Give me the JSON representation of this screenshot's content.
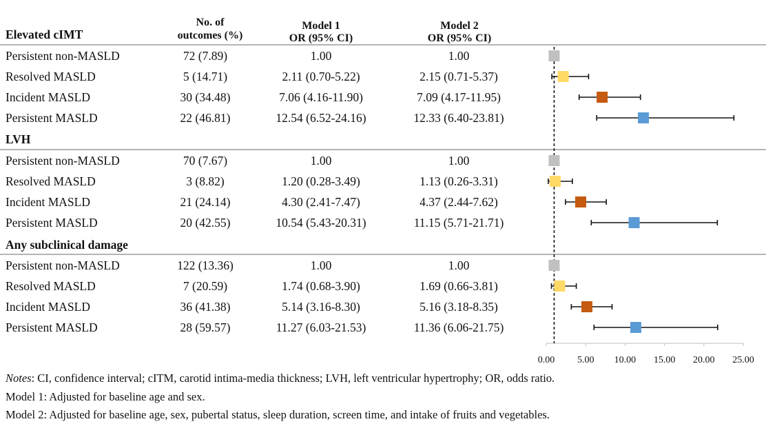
{
  "header": {
    "col_outcomes": [
      "No. of",
      "outcomes (%)"
    ],
    "col_model1": [
      "Model 1",
      "OR (95% CI)"
    ],
    "col_model2": [
      "Model 2",
      "OR (95% CI)"
    ]
  },
  "sections": [
    {
      "title": "Elevated cIMT",
      "rows": [
        {
          "group": "Persistent non-MASLD",
          "outcomes": "72 (7.89)",
          "model1": "1.00",
          "model2": "1.00"
        },
        {
          "group": "Resolved MASLD",
          "outcomes": "5 (14.71)",
          "model1": "2.11 (0.70-5.22)",
          "model2": "2.15 (0.71-5.37)"
        },
        {
          "group": "Incident MASLD",
          "outcomes": "30 (34.48)",
          "model1": "7.06 (4.16-11.90)",
          "model2": "7.09 (4.17-11.95)"
        },
        {
          "group": "Persistent MASLD",
          "outcomes": "22 (46.81)",
          "model1": "12.54 (6.52-24.16)",
          "model2": "12.33 (6.40-23.81)"
        }
      ]
    },
    {
      "title": "LVH",
      "rows": [
        {
          "group": "Persistent non-MASLD",
          "outcomes": "70 (7.67)",
          "model1": "1.00",
          "model2": "1.00"
        },
        {
          "group": "Resolved MASLD",
          "outcomes": "3 (8.82)",
          "model1": "1.20 (0.28-3.49)",
          "model2": "1.13 (0.26-3.31)"
        },
        {
          "group": "Incident MASLD",
          "outcomes": "21 (24.14)",
          "model1": "4.30 (2.41-7.47)",
          "model2": "4.37 (2.44-7.62)"
        },
        {
          "group": "Persistent MASLD",
          "outcomes": "20 (42.55)",
          "model1": "10.54 (5.43-20.31)",
          "model2": "11.15 (5.71-21.71)"
        }
      ]
    },
    {
      "title": "Any subclinical damage",
      "rows": [
        {
          "group": "Persistent non-MASLD",
          "outcomes": "122 (13.36)",
          "model1": "1.00",
          "model2": "1.00"
        },
        {
          "group": "Resolved MASLD",
          "outcomes": "7 (20.59)",
          "model1": "1.74 (0.68-3.90)",
          "model2": "1.69 (0.66-3.81)"
        },
        {
          "group": "Incident MASLD",
          "outcomes": "36 (41.38)",
          "model1": "5.14 (3.16-8.30)",
          "model2": "5.16 (3.18-8.35)"
        },
        {
          "group": "Persistent MASLD",
          "outcomes": "28 (59.57)",
          "model1": "11.27 (6.03-21.53)",
          "model2": "11.36 (6.06-21.75)"
        }
      ]
    }
  ],
  "chart_data": {
    "type": "scatter",
    "subtype": "forest-plot",
    "xlim": [
      0,
      25
    ],
    "x_ticks": [
      "0.00",
      "5.00",
      "10.00",
      "15.00",
      "20.00",
      "25.00"
    ],
    "reference_line": 1,
    "reference_line_style": "dashed",
    "grid": false,
    "group_colors": {
      "Persistent non-MASLD": "#c0c0c0",
      "Resolved MASLD": "#ffd966",
      "Incident MASLD": "#c55a11",
      "Persistent MASLD": "#5b9bd5"
    },
    "estimates_source": "Model 2",
    "points": [
      {
        "section": "Elevated cIMT",
        "group": "Persistent non-MASLD",
        "or": 1.0,
        "lo": null,
        "hi": null
      },
      {
        "section": "Elevated cIMT",
        "group": "Resolved MASLD",
        "or": 2.15,
        "lo": 0.71,
        "hi": 5.37
      },
      {
        "section": "Elevated cIMT",
        "group": "Incident MASLD",
        "or": 7.09,
        "lo": 4.17,
        "hi": 11.95
      },
      {
        "section": "Elevated cIMT",
        "group": "Persistent MASLD",
        "or": 12.33,
        "lo": 6.4,
        "hi": 23.81
      },
      {
        "section": "LVH",
        "group": "Persistent non-MASLD",
        "or": 1.0,
        "lo": null,
        "hi": null
      },
      {
        "section": "LVH",
        "group": "Resolved MASLD",
        "or": 1.13,
        "lo": 0.26,
        "hi": 3.31
      },
      {
        "section": "LVH",
        "group": "Incident MASLD",
        "or": 4.37,
        "lo": 2.44,
        "hi": 7.62
      },
      {
        "section": "LVH",
        "group": "Persistent MASLD",
        "or": 11.15,
        "lo": 5.71,
        "hi": 21.71
      },
      {
        "section": "Any subclinical damage",
        "group": "Persistent non-MASLD",
        "or": 1.0,
        "lo": null,
        "hi": null
      },
      {
        "section": "Any subclinical damage",
        "group": "Resolved MASLD",
        "or": 1.69,
        "lo": 0.66,
        "hi": 3.81
      },
      {
        "section": "Any subclinical damage",
        "group": "Incident MASLD",
        "or": 5.16,
        "lo": 3.18,
        "hi": 8.35
      },
      {
        "section": "Any subclinical damage",
        "group": "Persistent MASLD",
        "or": 11.36,
        "lo": 6.06,
        "hi": 21.75
      }
    ]
  },
  "notes": {
    "label": "Notes",
    "text": ": CI, confidence interval; cITM, carotid intima-media thickness; LVH, left ventricular hypertrophy; OR, odds ratio.",
    "model1": "Model 1: Adjusted for baseline age and sex.",
    "model2": "Model 2: Adjusted for baseline age, sex, pubertal status, sleep duration, screen time, and intake of fruits and vegetables."
  }
}
